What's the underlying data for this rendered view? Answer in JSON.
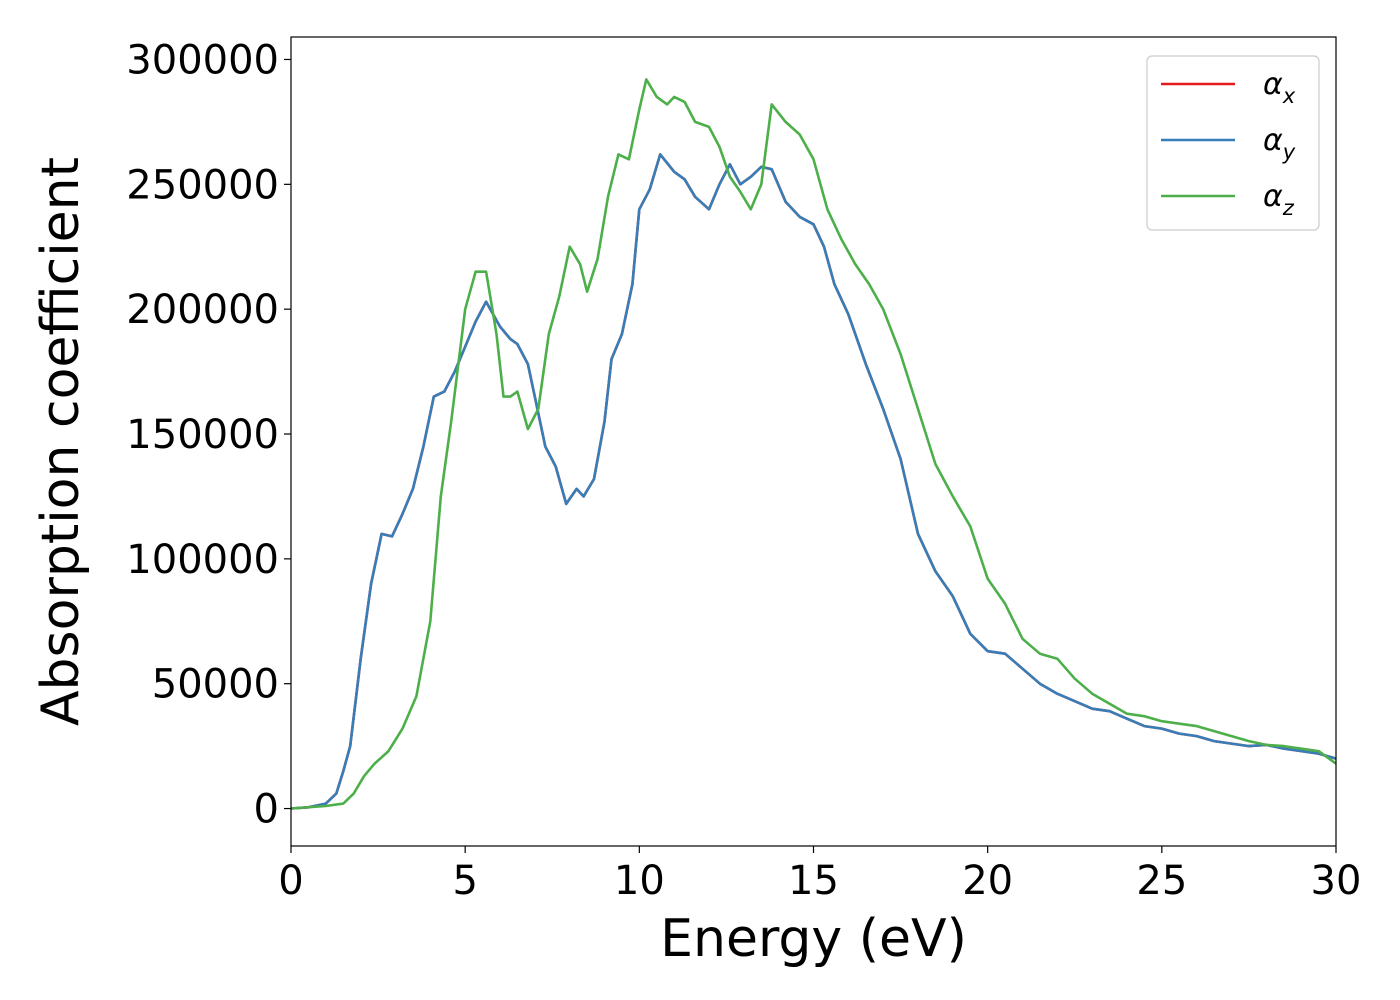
{
  "chart_data": {
    "type": "line",
    "title": "",
    "xlabel": "Energy (eV)",
    "ylabel": "Absorption coefficient",
    "xlim": [
      0,
      30
    ],
    "ylim": [
      -15000,
      309000
    ],
    "xticks": [
      0,
      5,
      10,
      15,
      20,
      25,
      30
    ],
    "yticks": [
      0,
      50000,
      100000,
      150000,
      200000,
      250000,
      300000
    ],
    "grid": false,
    "legend_position": "top-right",
    "legend": [
      {
        "base": "α",
        "sub": "x"
      },
      {
        "base": "α",
        "sub": "y"
      },
      {
        "base": "α",
        "sub": "z"
      }
    ],
    "series": [
      {
        "color": "#e41a1c",
        "x": [
          0,
          0.5,
          1,
          1.3,
          1.5,
          1.7,
          2,
          2.3,
          2.6,
          2.9,
          3.2,
          3.5,
          3.8,
          4.1,
          4.4,
          4.7,
          5,
          5.3,
          5.6,
          6,
          6.3,
          6.5,
          6.8,
          7,
          7.3,
          7.6,
          7.9,
          8.2,
          8.4,
          8.7,
          9,
          9.2,
          9.5,
          9.8,
          10,
          10.3,
          10.6,
          11,
          11.3,
          11.6,
          12,
          12.3,
          12.6,
          12.9,
          13.2,
          13.5,
          13.8,
          14.2,
          14.6,
          15,
          15.3,
          15.6,
          16,
          16.5,
          17,
          17.5,
          18,
          18.5,
          19,
          19.5,
          20,
          20.5,
          21,
          21.5,
          22,
          22.5,
          23,
          23.5,
          24,
          24.5,
          25,
          25.5,
          26,
          26.5,
          27,
          27.5,
          28,
          28.5,
          29,
          29.5,
          30
        ],
        "y": [
          0,
          500,
          2000,
          6000,
          15000,
          25000,
          60000,
          90000,
          110000,
          109000,
          118000,
          128000,
          145000,
          165000,
          167000,
          175000,
          185000,
          195000,
          203000,
          193000,
          188000,
          186000,
          178000,
          165000,
          145000,
          137000,
          122000,
          128000,
          125000,
          132000,
          155000,
          180000,
          190000,
          210000,
          240000,
          248000,
          262000,
          255000,
          252000,
          245000,
          240000,
          250000,
          258000,
          250000,
          253000,
          257000,
          256000,
          243000,
          237000,
          234000,
          225000,
          210000,
          198000,
          178000,
          160000,
          140000,
          110000,
          95000,
          85000,
          70000,
          63000,
          62000,
          56000,
          50000,
          46000,
          43000,
          40000,
          39000,
          36000,
          33000,
          32000,
          30000,
          29000,
          27000,
          26000,
          25000,
          25500,
          24000,
          23000,
          22000,
          20000
        ]
      },
      {
        "color": "#377eb8",
        "x": [
          0,
          0.5,
          1,
          1.3,
          1.5,
          1.7,
          2,
          2.3,
          2.6,
          2.9,
          3.2,
          3.5,
          3.8,
          4.1,
          4.4,
          4.7,
          5,
          5.3,
          5.6,
          6,
          6.3,
          6.5,
          6.8,
          7,
          7.3,
          7.6,
          7.9,
          8.2,
          8.4,
          8.7,
          9,
          9.2,
          9.5,
          9.8,
          10,
          10.3,
          10.6,
          11,
          11.3,
          11.6,
          12,
          12.3,
          12.6,
          12.9,
          13.2,
          13.5,
          13.8,
          14.2,
          14.6,
          15,
          15.3,
          15.6,
          16,
          16.5,
          17,
          17.5,
          18,
          18.5,
          19,
          19.5,
          20,
          20.5,
          21,
          21.5,
          22,
          22.5,
          23,
          23.5,
          24,
          24.5,
          25,
          25.5,
          26,
          26.5,
          27,
          27.5,
          28,
          28.5,
          29,
          29.5,
          30
        ],
        "y": [
          0,
          500,
          2000,
          6000,
          15000,
          25000,
          60000,
          90000,
          110000,
          109000,
          118000,
          128000,
          145000,
          165000,
          167000,
          175000,
          185000,
          195000,
          203000,
          193000,
          188000,
          186000,
          178000,
          165000,
          145000,
          137000,
          122000,
          128000,
          125000,
          132000,
          155000,
          180000,
          190000,
          210000,
          240000,
          248000,
          262000,
          255000,
          252000,
          245000,
          240000,
          250000,
          258000,
          250000,
          253000,
          257000,
          256000,
          243000,
          237000,
          234000,
          225000,
          210000,
          198000,
          178000,
          160000,
          140000,
          110000,
          95000,
          85000,
          70000,
          63000,
          62000,
          56000,
          50000,
          46000,
          43000,
          40000,
          39000,
          36000,
          33000,
          32000,
          30000,
          29000,
          27000,
          26000,
          25000,
          25500,
          24000,
          23000,
          22000,
          20000
        ]
      },
      {
        "color": "#4daf4a",
        "x": [
          0,
          1,
          1.5,
          1.8,
          2.1,
          2.4,
          2.8,
          3.2,
          3.6,
          4,
          4.3,
          4.6,
          5,
          5.3,
          5.6,
          5.9,
          6.1,
          6.3,
          6.5,
          6.8,
          7.1,
          7.4,
          7.7,
          8,
          8.3,
          8.5,
          8.8,
          9.1,
          9.4,
          9.7,
          10,
          10.2,
          10.5,
          10.8,
          11,
          11.3,
          11.6,
          12,
          12.3,
          12.6,
          12.9,
          13.2,
          13.5,
          13.8,
          14.2,
          14.6,
          15,
          15.4,
          15.8,
          16.2,
          16.6,
          17,
          17.5,
          18,
          18.5,
          19,
          19.5,
          20,
          20.5,
          21,
          21.5,
          22,
          22.5,
          23,
          23.5,
          24,
          24.5,
          25,
          25.5,
          26,
          26.5,
          27,
          27.5,
          28,
          28.5,
          29,
          29.5,
          30
        ],
        "y": [
          0,
          1000,
          2000,
          6000,
          13000,
          18000,
          23000,
          32000,
          45000,
          75000,
          125000,
          155000,
          200000,
          215000,
          215000,
          190000,
          165000,
          165000,
          167000,
          152000,
          160000,
          190000,
          205000,
          225000,
          218000,
          207000,
          220000,
          245000,
          262000,
          260000,
          280000,
          292000,
          285000,
          282000,
          285000,
          283000,
          275000,
          273000,
          265000,
          253000,
          247000,
          240000,
          250000,
          282000,
          275000,
          270000,
          260000,
          240000,
          228000,
          218000,
          210000,
          200000,
          182000,
          160000,
          138000,
          125000,
          113000,
          92000,
          82000,
          68000,
          62000,
          60000,
          52000,
          46000,
          42000,
          38000,
          37000,
          35000,
          34000,
          33000,
          31000,
          29000,
          27000,
          25500,
          25000,
          24000,
          23000,
          18000
        ]
      }
    ]
  }
}
